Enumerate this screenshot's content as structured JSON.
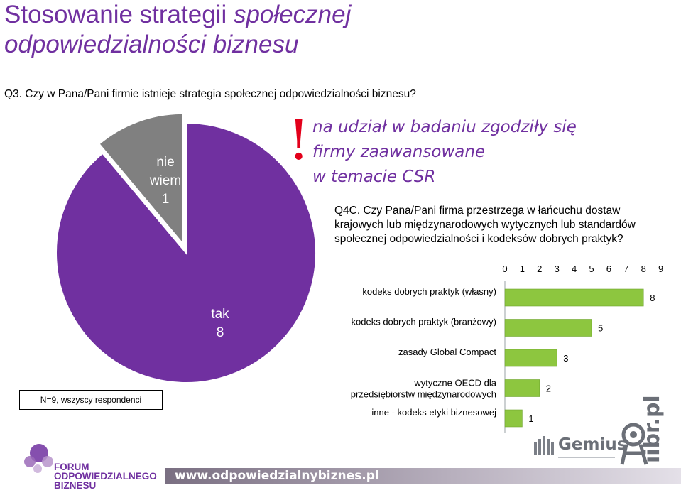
{
  "slide": {
    "title_regular": "Stosowanie strategii ",
    "title_italic": "społecznej",
    "title_line2": "odpowiedzialności biznesu",
    "q3": "Q3. Czy w Pana/Pani firmie istnieje strategia społecznej odpowiedzialności biznesu?",
    "exclaim": "!",
    "note_line1": "na udział w badaniu zgodziły się",
    "note_line2": "firmy zaawansowane",
    "note_line3": "w temacie CSR",
    "q4c_line1": "Q4C. Czy Pana/Pani firma przestrzega w łańcuchu dostaw",
    "q4c_line2": "krajowych lub międzynarodowych wytycznych lub standardów",
    "q4c_line3": "społecznej odpowiedzialności i kodeksów dobrych praktyk?",
    "n_label": "N=9, wszyscy respondenci"
  },
  "footer": {
    "forum_line1": "FORUM",
    "forum_line2": "ODPOWIEDZIALNEGO",
    "forum_line3": "BIZNESU",
    "url": "www.odpowiedzialnybiznes.pl",
    "gemius": "Gemius",
    "iibr": "iibr.pl",
    "colors": {
      "purple": "#7030a0",
      "gray": "#6b6f77",
      "red": "#e3001b"
    }
  },
  "chart_data": [
    {
      "type": "pie",
      "title": "",
      "slices": [
        {
          "label_line1": "nie",
          "label_line2": "wiem",
          "value": 1,
          "color": "#808080"
        },
        {
          "label_line1": "tak",
          "label_line2": "",
          "value": 8,
          "color": "#7030a0"
        }
      ]
    },
    {
      "type": "bar",
      "orientation": "horizontal",
      "title": "",
      "xlim": [
        0,
        9
      ],
      "ticks": [
        0,
        1,
        2,
        3,
        4,
        5,
        6,
        7,
        8,
        9
      ],
      "axis_position": "top",
      "bar_color": "#8dc63f",
      "categories": [
        {
          "line1": "kodeks dobrych praktyk (własny)",
          "line2": "",
          "value": 8
        },
        {
          "line1": "kodeks dobrych praktyk (branżowy)",
          "line2": "",
          "value": 5
        },
        {
          "line1": "zasady Global Compact",
          "line2": "",
          "value": 3
        },
        {
          "line1": "wytyczne OECD dla",
          "line2": "przedsiębiorstw międzynarodowych",
          "value": 2
        },
        {
          "line1": "inne - kodeks etyki biznesowej",
          "line2": "",
          "value": 1
        }
      ]
    }
  ]
}
